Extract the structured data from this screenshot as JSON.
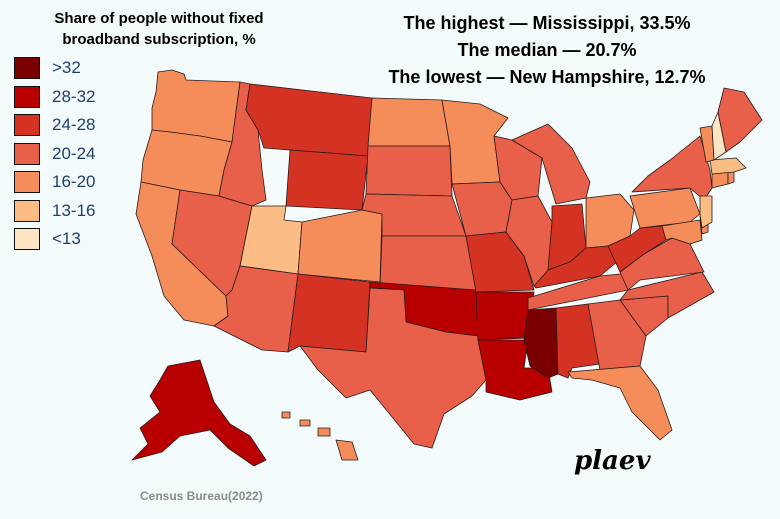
{
  "legend": {
    "title_line1": "Share of people without fixed",
    "title_line2": "broadband subscription, %",
    "items": [
      {
        "label": ">32",
        "color": "#7a0000"
      },
      {
        "label": "28-32",
        "color": "#b80000"
      },
      {
        "label": "24-28",
        "color": "#d43323"
      },
      {
        "label": "20-24",
        "color": "#e8604a"
      },
      {
        "label": "16-20",
        "color": "#f58d5a"
      },
      {
        "label": "13-16",
        "color": "#fbbd84"
      },
      {
        "label": "<13",
        "color": "#fde6c4"
      }
    ]
  },
  "stats": {
    "highest": "The highest — Mississippi, 33.5%",
    "median": "The median — 20.7%",
    "lowest": "The lowest — New Hampshire, 12.7%"
  },
  "signature": "plaev",
  "source": "Census Bureau(2022)",
  "states": {
    "WA": {
      "name": "Washington",
      "bin": "16-20"
    },
    "OR": {
      "name": "Oregon",
      "bin": "16-20"
    },
    "CA": {
      "name": "California",
      "bin": "16-20"
    },
    "NV": {
      "name": "Nevada",
      "bin": "20-24"
    },
    "ID": {
      "name": "Idaho",
      "bin": "20-24"
    },
    "MT": {
      "name": "Montana",
      "bin": "24-28"
    },
    "WY": {
      "name": "Wyoming",
      "bin": "24-28"
    },
    "UT": {
      "name": "Utah",
      "bin": "13-16"
    },
    "AZ": {
      "name": "Arizona",
      "bin": "20-24"
    },
    "CO": {
      "name": "Colorado",
      "bin": "16-20"
    },
    "NM": {
      "name": "New Mexico",
      "bin": "24-28"
    },
    "ND": {
      "name": "North Dakota",
      "bin": "16-20"
    },
    "SD": {
      "name": "South Dakota",
      "bin": "20-24"
    },
    "NE": {
      "name": "Nebraska",
      "bin": "20-24"
    },
    "KS": {
      "name": "Kansas",
      "bin": "20-24"
    },
    "OK": {
      "name": "Oklahoma",
      "bin": "28-32"
    },
    "TX": {
      "name": "Texas",
      "bin": "20-24"
    },
    "MN": {
      "name": "Minnesota",
      "bin": "16-20"
    },
    "IA": {
      "name": "Iowa",
      "bin": "20-24"
    },
    "MO": {
      "name": "Missouri",
      "bin": "24-28"
    },
    "AR": {
      "name": "Arkansas",
      "bin": "28-32"
    },
    "LA": {
      "name": "Louisiana",
      "bin": "28-32"
    },
    "WI": {
      "name": "Wisconsin",
      "bin": "20-24"
    },
    "IL": {
      "name": "Illinois",
      "bin": "20-24"
    },
    "MI": {
      "name": "Michigan",
      "bin": "20-24"
    },
    "IN": {
      "name": "Indiana",
      "bin": "24-28"
    },
    "OH": {
      "name": "Ohio",
      "bin": "16-20"
    },
    "KY": {
      "name": "Kentucky",
      "bin": "24-28"
    },
    "TN": {
      "name": "Tennessee",
      "bin": "20-24"
    },
    "MS": {
      "name": "Mississippi",
      "bin": ">32"
    },
    "AL": {
      "name": "Alabama",
      "bin": "24-28"
    },
    "GA": {
      "name": "Georgia",
      "bin": "20-24"
    },
    "FL": {
      "name": "Florida",
      "bin": "16-20"
    },
    "SC": {
      "name": "South Carolina",
      "bin": "20-24"
    },
    "NC": {
      "name": "North Carolina",
      "bin": "20-24"
    },
    "VA": {
      "name": "Virginia",
      "bin": "20-24"
    },
    "WV": {
      "name": "West Virginia",
      "bin": "24-28"
    },
    "PA": {
      "name": "Pennsylvania",
      "bin": "16-20"
    },
    "NY": {
      "name": "New York",
      "bin": "20-24"
    },
    "NJ": {
      "name": "New Jersey",
      "bin": "13-16"
    },
    "DE": {
      "name": "Delaware",
      "bin": "16-20"
    },
    "MD": {
      "name": "Maryland",
      "bin": "16-20"
    },
    "VT": {
      "name": "Vermont",
      "bin": "16-20"
    },
    "NH": {
      "name": "New Hampshire",
      "bin": "<13"
    },
    "ME": {
      "name": "Maine",
      "bin": "20-24"
    },
    "MA": {
      "name": "Massachusetts",
      "bin": "13-16"
    },
    "CT": {
      "name": "Connecticut",
      "bin": "16-20"
    },
    "RI": {
      "name": "Rhode Island",
      "bin": "16-20"
    },
    "AK": {
      "name": "Alaska",
      "bin": "28-32"
    },
    "HI": {
      "name": "Hawaii",
      "bin": "16-20"
    }
  }
}
